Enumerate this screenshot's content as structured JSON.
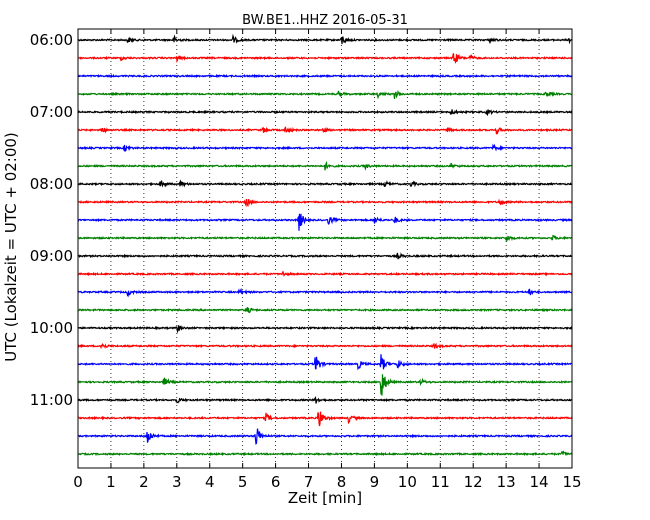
{
  "chart_data": {
    "type": "line",
    "title": "BW.BE1..HHZ 2016-05-31",
    "xlabel": "Zeit  [min]",
    "ylabel": "UTC (Lokalzeit = UTC + 02:00)",
    "xlim": [
      0,
      15
    ],
    "x_ticks": [
      0,
      1,
      2,
      3,
      4,
      5,
      6,
      7,
      8,
      9,
      10,
      11,
      12,
      13,
      14,
      15
    ],
    "x_tick_labels": [
      "0",
      "1",
      "2",
      "3",
      "4",
      "5",
      "6",
      "7",
      "8",
      "9",
      "10",
      "11",
      "12",
      "13",
      "14",
      "15"
    ],
    "y_tick_labels": [
      "06:00",
      "07:00",
      "08:00",
      "09:00",
      "10:00",
      "11:00"
    ],
    "grid": {
      "vertical_dotted": true
    },
    "series_colors": [
      "#000000",
      "#ff0000",
      "#0000ff",
      "#008000"
    ],
    "traces": [
      {
        "start": "06:00",
        "color": "#000000",
        "events": [
          {
            "t": 1.5,
            "a": 3
          },
          {
            "t": 2.9,
            "a": 4
          },
          {
            "t": 4.7,
            "a": 4
          },
          {
            "t": 8.0,
            "a": 6
          },
          {
            "t": 12.5,
            "a": 3
          },
          {
            "t": 14.9,
            "a": 3
          }
        ]
      },
      {
        "start": "06:15",
        "color": "#ff0000",
        "events": [
          {
            "t": 1.3,
            "a": 2
          },
          {
            "t": 3.0,
            "a": 3
          },
          {
            "t": 11.4,
            "a": 9
          },
          {
            "t": 11.9,
            "a": 3
          }
        ]
      },
      {
        "start": "06:30",
        "color": "#0000ff",
        "events": []
      },
      {
        "start": "06:45",
        "color": "#008000",
        "events": [
          {
            "t": 7.9,
            "a": 3
          },
          {
            "t": 9.1,
            "a": 3
          },
          {
            "t": 9.6,
            "a": 5
          },
          {
            "t": 14.2,
            "a": 3
          }
        ]
      },
      {
        "start": "07:00",
        "color": "#000000",
        "events": [
          {
            "t": 11.3,
            "a": 4
          },
          {
            "t": 12.4,
            "a": 3
          }
        ]
      },
      {
        "start": "07:15",
        "color": "#ff0000",
        "events": [
          {
            "t": 0.7,
            "a": 4
          },
          {
            "t": 5.6,
            "a": 3
          },
          {
            "t": 6.3,
            "a": 4
          },
          {
            "t": 7.4,
            "a": 3
          },
          {
            "t": 11.2,
            "a": 3
          },
          {
            "t": 12.7,
            "a": 4
          }
        ]
      },
      {
        "start": "07:30",
        "color": "#0000ff",
        "events": [
          {
            "t": 1.4,
            "a": 4
          },
          {
            "t": 12.6,
            "a": 3
          }
        ]
      },
      {
        "start": "07:45",
        "color": "#008000",
        "events": [
          {
            "t": 7.5,
            "a": 4
          },
          {
            "t": 8.7,
            "a": 3
          },
          {
            "t": 11.3,
            "a": 3
          }
        ]
      },
      {
        "start": "08:00",
        "color": "#000000",
        "events": [
          {
            "t": 2.5,
            "a": 4
          },
          {
            "t": 3.1,
            "a": 3
          },
          {
            "t": 9.3,
            "a": 3
          },
          {
            "t": 10.1,
            "a": 3
          }
        ]
      },
      {
        "start": "08:15",
        "color": "#ff0000",
        "events": [
          {
            "t": 5.1,
            "a": 5
          },
          {
            "t": 12.8,
            "a": 4
          }
        ]
      },
      {
        "start": "08:30",
        "color": "#0000ff",
        "events": [
          {
            "t": 6.7,
            "a": 12
          },
          {
            "t": 7.6,
            "a": 5
          },
          {
            "t": 9.0,
            "a": 4
          },
          {
            "t": 9.6,
            "a": 4
          }
        ]
      },
      {
        "start": "08:45",
        "color": "#008000",
        "events": [
          {
            "t": 13.0,
            "a": 4
          },
          {
            "t": 14.4,
            "a": 3
          }
        ]
      },
      {
        "start": "09:00",
        "color": "#000000",
        "events": [
          {
            "t": 9.7,
            "a": 3
          }
        ]
      },
      {
        "start": "09:15",
        "color": "#ff0000",
        "events": [
          {
            "t": 6.2,
            "a": 3
          }
        ]
      },
      {
        "start": "09:30",
        "color": "#0000ff",
        "events": [
          {
            "t": 1.5,
            "a": 4
          },
          {
            "t": 4.9,
            "a": 3
          },
          {
            "t": 13.7,
            "a": 3
          }
        ]
      },
      {
        "start": "09:45",
        "color": "#008000",
        "events": [
          {
            "t": 5.1,
            "a": 5
          }
        ]
      },
      {
        "start": "10:00",
        "color": "#000000",
        "events": [
          {
            "t": 3.0,
            "a": 4
          }
        ]
      },
      {
        "start": "10:15",
        "color": "#ff0000",
        "events": [
          {
            "t": 0.7,
            "a": 4
          },
          {
            "t": 10.8,
            "a": 3
          }
        ]
      },
      {
        "start": "10:30",
        "color": "#0000ff",
        "events": [
          {
            "t": 7.2,
            "a": 12
          },
          {
            "t": 8.5,
            "a": 5
          },
          {
            "t": 9.2,
            "a": 10
          },
          {
            "t": 9.7,
            "a": 5
          }
        ]
      },
      {
        "start": "10:45",
        "color": "#008000",
        "events": [
          {
            "t": 2.6,
            "a": 5
          },
          {
            "t": 9.2,
            "a": 20
          },
          {
            "t": 10.4,
            "a": 3
          }
        ]
      },
      {
        "start": "11:00",
        "color": "#000000",
        "events": [
          {
            "t": 3.0,
            "a": 3
          },
          {
            "t": 7.2,
            "a": 4
          }
        ]
      },
      {
        "start": "11:15",
        "color": "#ff0000",
        "events": [
          {
            "t": 5.7,
            "a": 5
          },
          {
            "t": 7.3,
            "a": 14
          },
          {
            "t": 8.2,
            "a": 5
          }
        ]
      },
      {
        "start": "11:30",
        "color": "#0000ff",
        "events": [
          {
            "t": 2.1,
            "a": 10
          },
          {
            "t": 5.4,
            "a": 13
          }
        ]
      },
      {
        "start": "11:45",
        "color": "#008000",
        "events": [
          {
            "t": 14.7,
            "a": 3
          }
        ]
      }
    ]
  }
}
